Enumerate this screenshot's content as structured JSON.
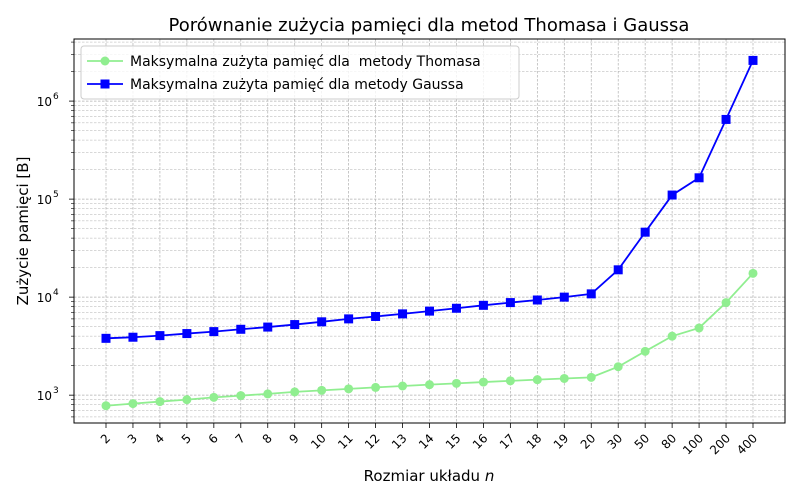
{
  "chart_data": {
    "type": "line",
    "title": "Porównanie zużycia pamięci dla metod Thomasa i Gaussa",
    "xlabel": "Rozmiar układu",
    "xlabel_var": "n",
    "ylabel": "Zużycie pamięci [B]",
    "yscale": "log",
    "ylim": [
      520,
      4300000
    ],
    "y_tick_labels": [
      "10",
      "10",
      "10",
      "10"
    ],
    "y_tick_exponents": [
      "3",
      "4",
      "5",
      "6"
    ],
    "y_tick_values": [
      1000,
      10000,
      100000,
      1000000
    ],
    "grid": true,
    "legend_position": "upper-left",
    "categories": [
      "2",
      "3",
      "4",
      "5",
      "6",
      "7",
      "8",
      "9",
      "10",
      "11",
      "12",
      "13",
      "14",
      "15",
      "16",
      "17",
      "18",
      "19",
      "20",
      "30",
      "50",
      "80",
      "100",
      "200",
      "400"
    ],
    "series": [
      {
        "name": "Maksymalna zużyta pamięć dla  metody Thomasa",
        "color": "#90ee90",
        "marker": "circle",
        "values": [
          780,
          820,
          860,
          900,
          950,
          990,
          1030,
          1080,
          1120,
          1160,
          1200,
          1240,
          1280,
          1320,
          1360,
          1400,
          1440,
          1480,
          1520,
          1950,
          2800,
          4000,
          4850,
          8800,
          17500
        ]
      },
      {
        "name": "Maksymalna zużyta pamięć dla metody Gaussa",
        "color": "#0000ff",
        "marker": "square",
        "values": [
          3800,
          3900,
          4050,
          4250,
          4450,
          4700,
          4950,
          5250,
          5600,
          6000,
          6350,
          6750,
          7200,
          7700,
          8250,
          8800,
          9350,
          10000,
          10800,
          19000,
          46000,
          110000,
          165000,
          650000,
          2600000
        ]
      }
    ]
  }
}
